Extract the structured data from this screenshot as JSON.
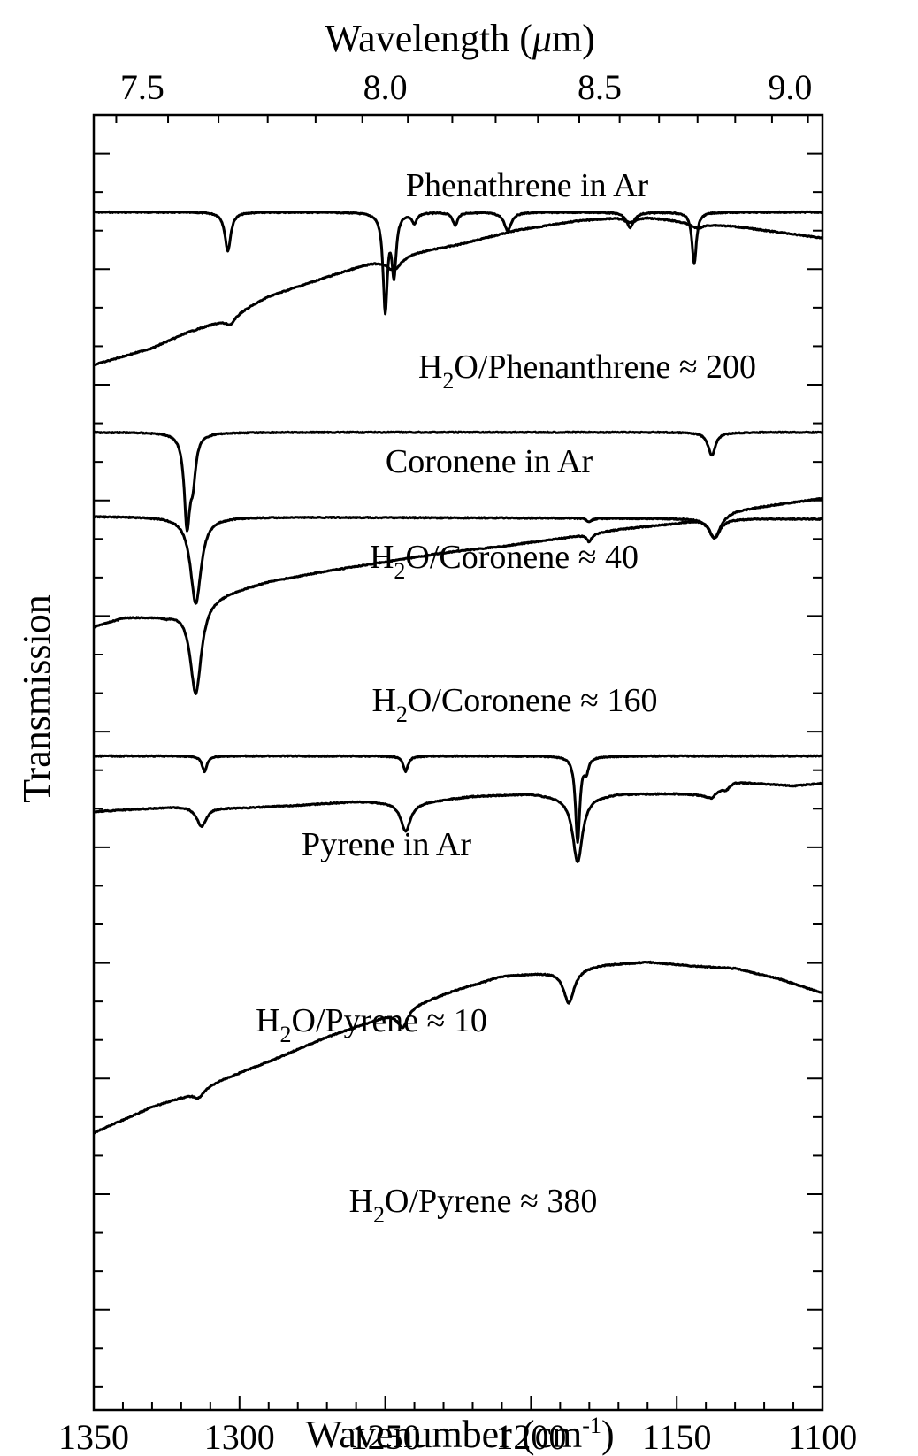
{
  "chart_data": {
    "type": "line",
    "title": "",
    "xlabel": "Wavenumber (cm",
    "xlabel_sup": "-1",
    "xlabel_close": ")",
    "ylabel": "Transmission",
    "top_xlabel": "Wavelength (",
    "top_xlabel_mu": "μ",
    "top_xlabel_unit": "m)",
    "xlim": [
      1350,
      1100
    ],
    "x_ticks": [
      1350,
      1300,
      1250,
      1200,
      1150,
      1100
    ],
    "x_tick_labels": [
      "1350",
      "1300",
      "1250",
      "1200",
      "1150",
      "1100"
    ],
    "top_ticks_um": [
      7.5,
      8.0,
      8.5,
      9.0
    ],
    "top_tick_labels": [
      "7.5",
      "8.0",
      "8.5",
      "9.0"
    ],
    "y_ticks_visible": true,
    "y_values_scale": "arbitrary (stacked, offset spectra)",
    "line_color": "#000000",
    "series": [
      {
        "name": "Phenathrene in Ar",
        "label_parts": [
          "Phenathrene in Ar"
        ],
        "baseline": 0.075,
        "depth_scale": 1.0,
        "slope": [
          0,
          0
        ],
        "curve": [],
        "bands": [
          {
            "x": 1304,
            "depth": 0.03,
            "width": 1.2
          },
          {
            "x": 1250,
            "depth": 0.075,
            "width": 0.9
          },
          {
            "x": 1247,
            "depth": 0.046,
            "width": 0.9
          },
          {
            "x": 1240,
            "depth": 0.008,
            "width": 1.0
          },
          {
            "x": 1226,
            "depth": 0.01,
            "width": 1.0
          },
          {
            "x": 1208,
            "depth": 0.014,
            "width": 1.5
          },
          {
            "x": 1166,
            "depth": 0.012,
            "width": 1.5
          },
          {
            "x": 1144,
            "depth": 0.04,
            "width": 0.9
          }
        ]
      },
      {
        "name": "H2O/Phenanthrene ≈ 200",
        "label_parts": [
          "H",
          "2",
          "O/Phenanthrene ≈ 200"
        ],
        "baseline": 0,
        "depth_scale": 1.0,
        "slope": [
          0,
          0
        ],
        "curve": [
          [
            1350,
            0.193
          ],
          [
            1330,
            0.18
          ],
          [
            1318,
            0.168
          ],
          [
            1305,
            0.158
          ],
          [
            1290,
            0.14
          ],
          [
            1270,
            0.125
          ],
          [
            1255,
            0.114
          ],
          [
            1240,
            0.106
          ],
          [
            1225,
            0.1
          ],
          [
            1205,
            0.089
          ],
          [
            1185,
            0.082
          ],
          [
            1170,
            0.079
          ],
          [
            1160,
            0.079
          ],
          [
            1145,
            0.083
          ],
          [
            1130,
            0.086
          ],
          [
            1100,
            0.095
          ]
        ],
        "bands": [
          {
            "x": 1303,
            "depth": 0.006,
            "width": 2.0
          },
          {
            "x": 1247,
            "depth": 0.01,
            "width": 3.0
          },
          {
            "x": 1166,
            "depth": 0.004,
            "width": 2.5
          },
          {
            "x": 1143,
            "depth": 0.004,
            "width": 2.5
          }
        ]
      },
      {
        "name": "Coronene in Ar",
        "label_parts": [
          "Coronene in Ar"
        ],
        "baseline": 0.245,
        "depth_scale": 1.0,
        "slope": [
          0,
          0
        ],
        "curve": [],
        "bands": [
          {
            "x": 1318,
            "depth": 0.068,
            "width": 1.2
          },
          {
            "x": 1316,
            "depth": 0.03,
            "width": 1.2
          },
          {
            "x": 1138,
            "depth": 0.018,
            "width": 1.5
          }
        ]
      },
      {
        "name": "H2O/Coronene ≈ 40",
        "label_parts": [
          "H",
          "2",
          "O/Coronene ≈ 40"
        ],
        "baseline": 0.31,
        "depth_scale": 1.0,
        "slope": [
          0,
          0.002
        ],
        "curve": [],
        "bands": [
          {
            "x": 1315,
            "depth": 0.067,
            "width": 2.2
          },
          {
            "x": 1180,
            "depth": 0.003,
            "width": 1.0
          },
          {
            "x": 1137,
            "depth": 0.015,
            "width": 2.2
          }
        ]
      },
      {
        "name": "H2O/Coronene ≈ 160",
        "label_parts": [
          "H",
          "2",
          "O/Coronene ≈ 160"
        ],
        "baseline": 0,
        "depth_scale": 1.0,
        "slope": [
          0,
          0
        ],
        "curve": [
          [
            1350,
            0.395
          ],
          [
            1340,
            0.388
          ],
          [
            1325,
            0.386
          ],
          [
            1310,
            0.372
          ],
          [
            1290,
            0.36
          ],
          [
            1270,
            0.352
          ],
          [
            1250,
            0.345
          ],
          [
            1230,
            0.338
          ],
          [
            1210,
            0.333
          ],
          [
            1190,
            0.327
          ],
          [
            1170,
            0.32
          ],
          [
            1150,
            0.315
          ],
          [
            1130,
            0.305
          ],
          [
            1100,
            0.296
          ]
        ],
        "bands": [
          {
            "x": 1315,
            "depth": 0.07,
            "width": 2.3
          },
          {
            "x": 1180,
            "depth": 0.006,
            "width": 1.0
          },
          {
            "x": 1137,
            "depth": 0.018,
            "width": 2.5
          }
        ]
      },
      {
        "name": "Pyrene in Ar",
        "label_parts": [
          "Pyrene in Ar"
        ],
        "baseline": 0.495,
        "depth_scale": 1.0,
        "slope": [
          0,
          0
        ],
        "curve": [],
        "bands": [
          {
            "x": 1312,
            "depth": 0.012,
            "width": 1.0
          },
          {
            "x": 1243,
            "depth": 0.012,
            "width": 1.0
          },
          {
            "x": 1184,
            "depth": 0.066,
            "width": 0.9
          },
          {
            "x": 1181,
            "depth": 0.01,
            "width": 0.9
          }
        ]
      },
      {
        "name": "H2O/Pyrene ≈ 10",
        "label_parts": [
          "H",
          "2",
          "O/Pyrene ≈ 10"
        ],
        "baseline": 0,
        "depth_scale": 1.0,
        "slope": [
          0,
          0
        ],
        "curve": [
          [
            1350,
            0.538
          ],
          [
            1335,
            0.536
          ],
          [
            1320,
            0.534
          ],
          [
            1300,
            0.535
          ],
          [
            1280,
            0.533
          ],
          [
            1260,
            0.53
          ],
          [
            1240,
            0.531
          ],
          [
            1220,
            0.526
          ],
          [
            1200,
            0.524
          ],
          [
            1185,
            0.527
          ],
          [
            1170,
            0.524
          ],
          [
            1150,
            0.524
          ],
          [
            1140,
            0.525
          ],
          [
            1130,
            0.515
          ],
          [
            1110,
            0.518
          ],
          [
            1100,
            0.516
          ]
        ],
        "bands": [
          {
            "x": 1313,
            "depth": 0.015,
            "width": 2.0
          },
          {
            "x": 1243,
            "depth": 0.022,
            "width": 2.0
          },
          {
            "x": 1184,
            "depth": 0.05,
            "width": 2.0
          },
          {
            "x": 1138,
            "depth": 0.004,
            "width": 1.5
          },
          {
            "x": 1133,
            "depth": 0.003,
            "width": 1.5
          }
        ]
      },
      {
        "name": "H2O/Pyrene ≈ 380",
        "label_parts": [
          "H",
          "2",
          "O/Pyrene ≈ 380"
        ],
        "baseline": 0,
        "depth_scale": 1.0,
        "slope": [
          0,
          0
        ],
        "curve": [
          [
            1350,
            0.786
          ],
          [
            1340,
            0.776
          ],
          [
            1330,
            0.766
          ],
          [
            1318,
            0.757
          ],
          [
            1305,
            0.744
          ],
          [
            1290,
            0.731
          ],
          [
            1270,
            0.712
          ],
          [
            1255,
            0.7
          ],
          [
            1240,
            0.687
          ],
          [
            1225,
            0.675
          ],
          [
            1210,
            0.665
          ],
          [
            1195,
            0.662
          ],
          [
            1175,
            0.656
          ],
          [
            1160,
            0.654
          ],
          [
            1145,
            0.657
          ],
          [
            1130,
            0.659
          ],
          [
            1115,
            0.667
          ],
          [
            1100,
            0.678
          ]
        ],
        "bands": [
          {
            "x": 1314,
            "depth": 0.006,
            "width": 2.0
          },
          {
            "x": 1244,
            "depth": 0.014,
            "width": 2.2
          },
          {
            "x": 1187,
            "depth": 0.026,
            "width": 2.2
          }
        ]
      }
    ]
  }
}
